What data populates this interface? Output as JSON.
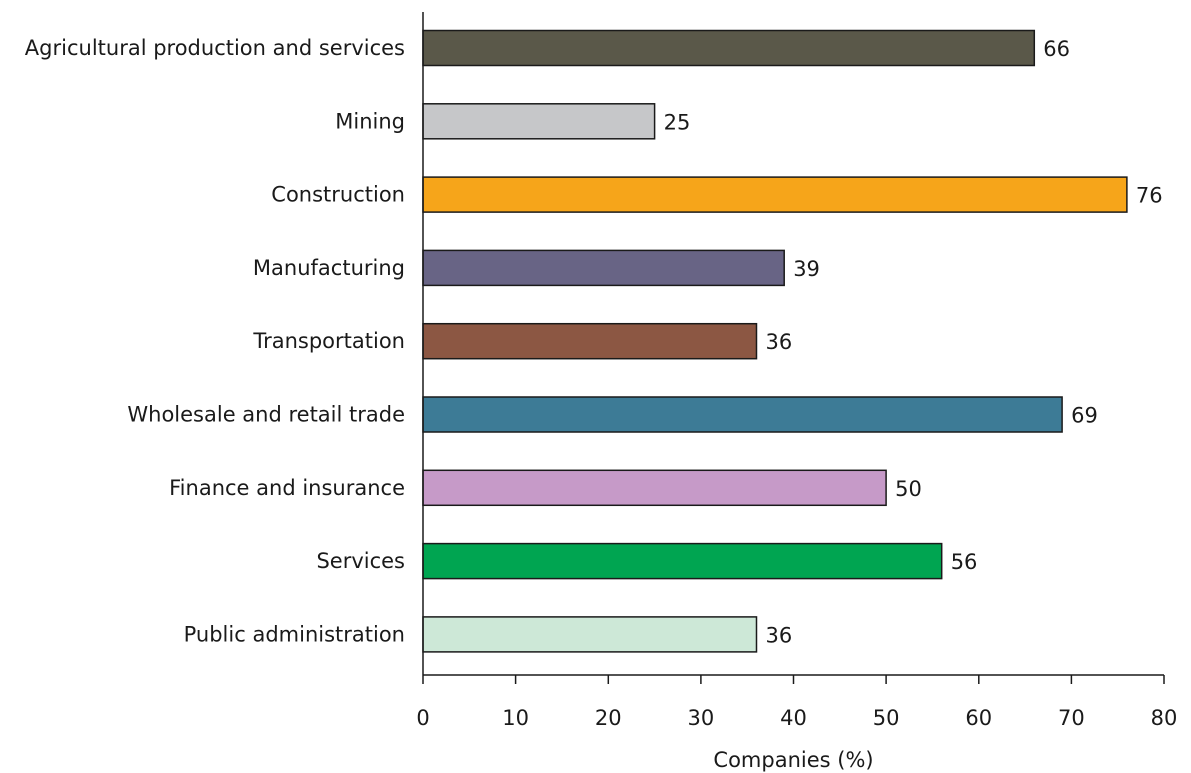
{
  "chart_data": {
    "type": "bar",
    "orientation": "horizontal",
    "categories": [
      "Agricultural production and services",
      "Mining",
      "Construction",
      "Manufacturing",
      "Transportation",
      "Wholesale and retail trade",
      "Finance and insurance",
      "Services",
      "Public administration"
    ],
    "values": [
      66,
      25,
      76,
      39,
      36,
      69,
      50,
      56,
      36
    ],
    "value_labels": [
      "66",
      "25",
      "76",
      "39",
      "36",
      "69",
      "50",
      "56",
      "36"
    ],
    "colors": [
      "#5a5849",
      "#c6c7c9",
      "#f6a51a",
      "#686485",
      "#8c5743",
      "#3d7b96",
      "#c69ac8",
      "#00a551",
      "#cde8d7"
    ],
    "title": "",
    "xlabel": "Companies (%)",
    "ylabel": "",
    "xlim": [
      0,
      80
    ],
    "xticks": [
      0,
      10,
      20,
      30,
      40,
      50,
      60,
      70,
      80
    ],
    "grid": false,
    "legend": "none"
  }
}
